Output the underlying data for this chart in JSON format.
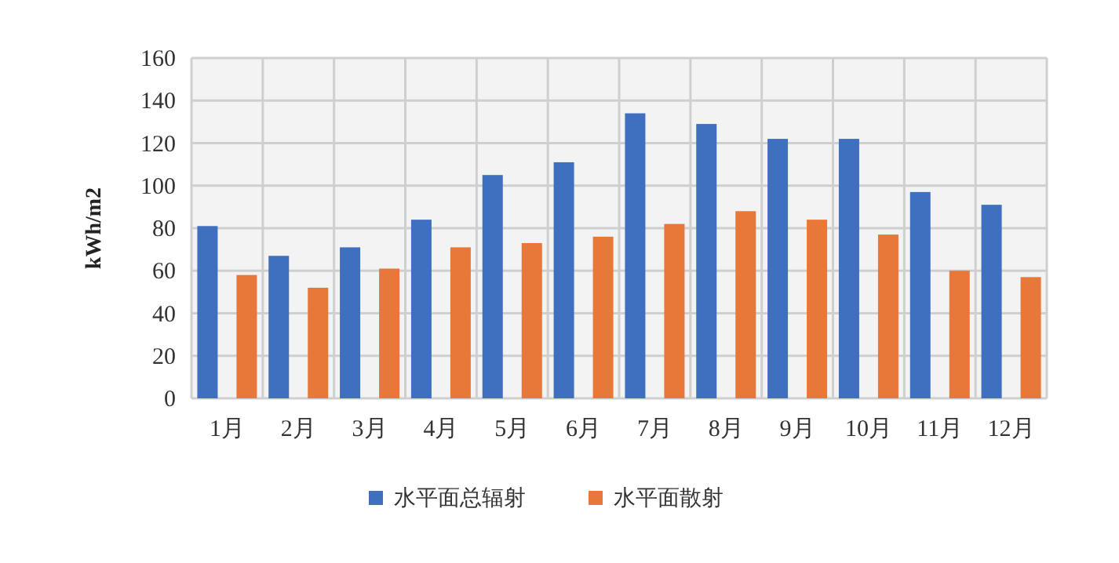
{
  "chart_data": {
    "type": "bar",
    "ylabel": "kWh/m2",
    "categories": [
      "1月",
      "2月",
      "3月",
      "4月",
      "5月",
      "6月",
      "7月",
      "8月",
      "9月",
      "10月",
      "11月",
      "12月"
    ],
    "series": [
      {
        "name": "水平面总辐射",
        "color": "#3f6fbf",
        "values": [
          81,
          67,
          71,
          84,
          105,
          111,
          134,
          129,
          122,
          122,
          97,
          91
        ]
      },
      {
        "name": "水平面散射",
        "color": "#e8773a",
        "values": [
          58,
          52,
          61,
          71,
          73,
          76,
          82,
          88,
          84,
          77,
          60,
          57
        ]
      }
    ],
    "ylim": [
      0,
      160
    ],
    "yticks": [
      0,
      20,
      40,
      60,
      80,
      100,
      120,
      140,
      160
    ],
    "grid": true,
    "legend": "bottom"
  }
}
